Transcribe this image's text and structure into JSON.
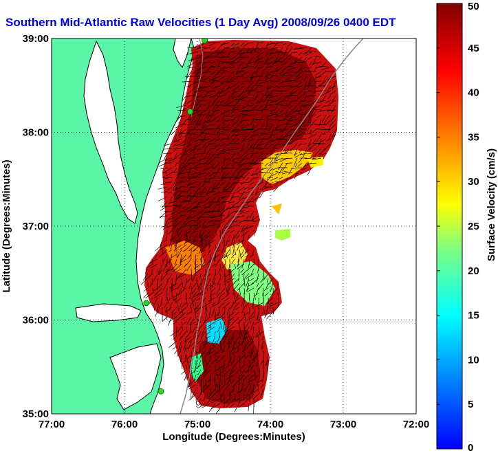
{
  "title": "Southern Mid-Atlantic Raw Velocities (1 Day Avg) 2008/09/26 0400 EDT",
  "map": {
    "x_axis_label": "Longitude (Degrees:Minutes)",
    "y_axis_label": "Latitude (Degrees:Minutes)",
    "x_ticks": [
      "77:00",
      "76:00",
      "75:00",
      "74:00",
      "73:00",
      "72:00"
    ],
    "y_ticks": [
      "39:00",
      "38:00",
      "37:00",
      "36:00",
      "35:00"
    ],
    "lon_range": [
      -77,
      -72
    ],
    "lat_range": [
      35,
      39
    ],
    "grid": "dotted",
    "colors": {
      "land": "#5af5a6",
      "water": "#ffffff",
      "coast_line": "#000000",
      "title": "#0000e6",
      "station": "#22dd22"
    }
  },
  "colorbar": {
    "label": "Surface Velocity (cm/s)",
    "ticks": [
      "50",
      "45",
      "40",
      "35",
      "30",
      "25",
      "20",
      "15",
      "10",
      "5",
      "0"
    ],
    "min": 0,
    "max": 50,
    "colormap": "jet"
  },
  "stations": [
    {
      "lon": -74.9,
      "lat": 38.98
    },
    {
      "lon": -75.1,
      "lat": 38.22
    },
    {
      "lon": -75.7,
      "lat": 36.18
    },
    {
      "lon": -75.5,
      "lat": 35.24
    }
  ]
}
